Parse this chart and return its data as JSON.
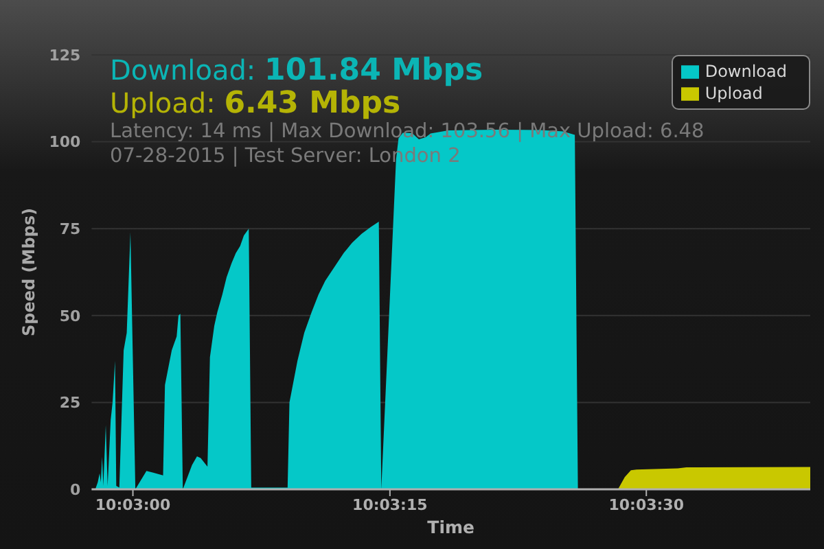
{
  "chart_data": {
    "type": "area",
    "annotations": [
      "Download: 101.84 Mbps",
      "Upload: 6.43 Mbps",
      "Latency: 14 ms | Max Download: 103.56 | Max Upload: 6.48",
      "07-28-2015 | Test Server: London 2"
    ],
    "xlabel": "Time",
    "ylabel": "Speed (Mbps)",
    "series": [
      {
        "name": "Download",
        "color": "#05c8c8",
        "x": [
          10.04939,
          10.04943,
          10.04946,
          10.04948,
          10.0495,
          10.04952,
          10.04956,
          10.04959,
          10.04964,
          10.04967,
          10.04971,
          10.04973,
          10.04978,
          10.04985,
          10.0499,
          10.04996,
          10.05004,
          10.05022,
          10.05033,
          10.05049,
          10.05052,
          10.05063,
          10.05071,
          10.05074,
          10.05077,
          10.05081,
          10.05096,
          10.05104,
          10.0511,
          10.05121,
          10.05125,
          10.05132,
          10.05137,
          10.05145,
          10.05152,
          10.0516,
          10.05167,
          10.05174,
          10.0518,
          10.05188,
          10.05192,
          10.05251,
          10.05254,
          10.05267,
          10.05278,
          10.0529,
          10.05301,
          10.05312,
          10.05327,
          10.05342,
          10.05356,
          10.05371,
          10.05386,
          10.05399,
          10.05403,
          10.05427,
          10.05431,
          10.05438,
          10.05453,
          10.05464,
          10.05475,
          10.05483,
          10.05512,
          10.05587,
          10.05661,
          10.05698,
          10.05717,
          10.05722
        ],
        "values": [
          0,
          2,
          4.6,
          2,
          9.4,
          1,
          18.5,
          1,
          20,
          25,
          37,
          1,
          0.5,
          40,
          45,
          74,
          0,
          5.3,
          4.8,
          4,
          30,
          40,
          44,
          50,
          50.5,
          0,
          7,
          9.5,
          9,
          6.5,
          38,
          47,
          51,
          56,
          61,
          65,
          68,
          70,
          73,
          75,
          0.5,
          0.5,
          25,
          37,
          45,
          51,
          56,
          60,
          64,
          68,
          71,
          73.5,
          75.5,
          77,
          0,
          95,
          101,
          102.6,
          102.5,
          100.7,
          101.3,
          102.4,
          103.3,
          103.5,
          103.4,
          103,
          102,
          0
        ]
      },
      {
        "name": "Upload",
        "color": "#c9c800",
        "x": [
          10.05787,
          10.05798,
          10.05808,
          10.05817,
          10.05884,
          10.05898,
          10.06099
        ],
        "values": [
          0,
          3.5,
          5.5,
          5.7,
          6,
          6.3,
          6.4
        ]
      }
    ],
    "xlim": [
      10.04933,
      10.06099
    ],
    "xticks": [
      {
        "value": 10.05,
        "label": "10:03:00"
      },
      {
        "value": 10.05417,
        "label": "10:03:15"
      },
      {
        "value": 10.05833,
        "label": "10:03:30"
      }
    ],
    "ylim": [
      0,
      125
    ],
    "yticks": [
      0,
      25,
      50,
      75,
      100,
      125
    ],
    "grid": "y",
    "legend": "top right"
  }
}
